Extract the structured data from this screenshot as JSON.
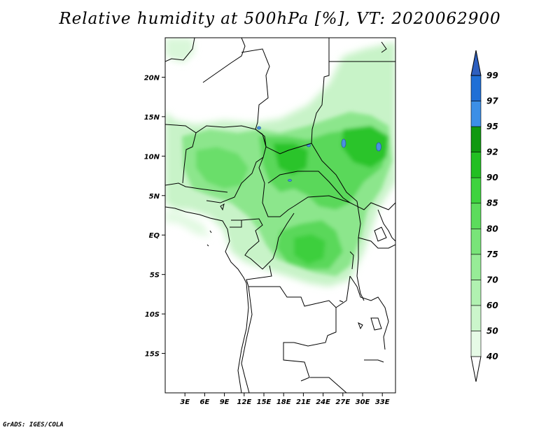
{
  "chart_data": {
    "type": "heatmap",
    "title": "Relative humidity at 500hPa [%], VT: 2020062900",
    "variable": "Relative humidity at 500hPa",
    "units": "%",
    "valid_time": "2020062900",
    "x_axis": {
      "range": [
        0,
        35
      ],
      "tick_labels": [
        "3E",
        "6E",
        "9E",
        "12E",
        "15E",
        "18E",
        "21E",
        "24E",
        "27E",
        "30E",
        "33E"
      ],
      "tick_values": [
        3,
        6,
        9,
        12,
        15,
        18,
        21,
        24,
        27,
        30,
        33
      ]
    },
    "y_axis": {
      "range": [
        -20,
        25
      ],
      "tick_labels": [
        "20N",
        "15N",
        "10N",
        "5N",
        "EQ",
        "5S",
        "10S",
        "15S"
      ],
      "tick_values": [
        20,
        15,
        10,
        5,
        0,
        -5,
        -10,
        -15
      ]
    },
    "colorbar": {
      "levels": [
        "40",
        "50",
        "60",
        "70",
        "75",
        "80",
        "85",
        "90",
        "92",
        "95",
        "97",
        "99"
      ],
      "colors": [
        "#ffffff",
        "#e6fbe6",
        "#cbf6cb",
        "#b1f1b1",
        "#97ec97",
        "#79e479",
        "#5cdc5c",
        "#3ed33e",
        "#22bf22",
        "#109910",
        "#3c8fe6",
        "#1f6fd6",
        "#2e5fbf"
      ]
    },
    "grid": false,
    "legend_placement": "right"
  },
  "footer": "GrADS: IGES/COLA"
}
